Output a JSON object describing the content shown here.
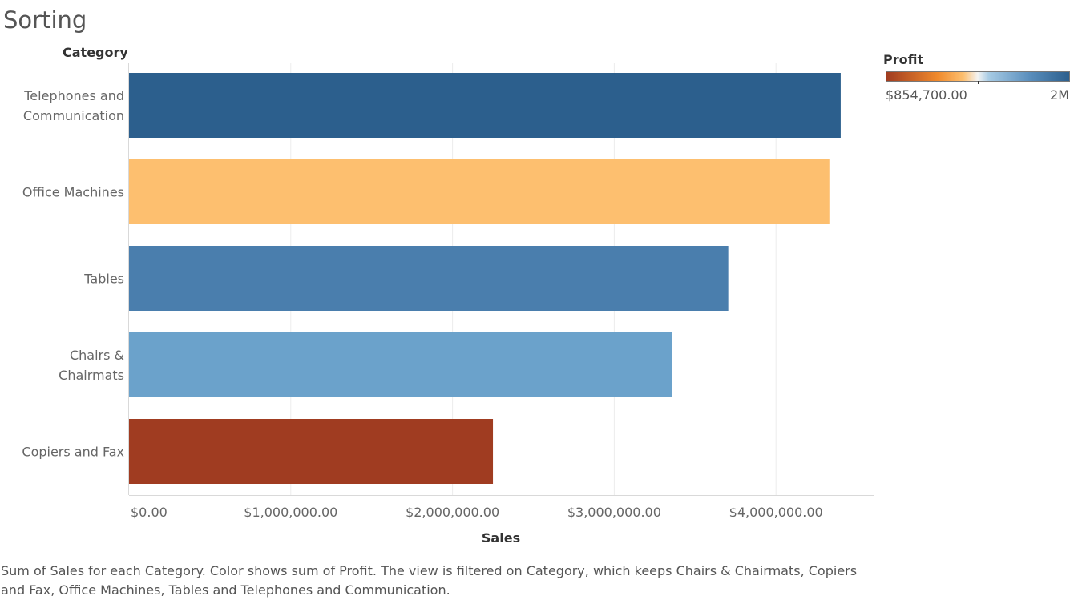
{
  "title": "Sorting",
  "chart_data": {
    "type": "bar",
    "orientation": "horizontal",
    "row_header": "Category",
    "xlabel": "Sales",
    "categories": [
      "Telephones and Communication",
      "Office Machines",
      "Tables",
      "Chairs & Chairmats",
      "Copiers and Fax"
    ],
    "category_label_lines": [
      [
        "Telephones and",
        "Communication"
      ],
      [
        "Office Machines"
      ],
      [
        "Tables"
      ],
      [
        "Chairs &",
        "Chairmats"
      ],
      [
        "Copiers and Fax"
      ]
    ],
    "values": [
      4400000,
      4330000,
      3705000,
      3355000,
      2250000
    ],
    "bar_colors": [
      "#2c5f8d",
      "#fdbf6f",
      "#4a7ead",
      "#6ba2cb",
      "#a03c21"
    ],
    "xlim": [
      0,
      4600000
    ],
    "x_ticks": [
      0,
      1000000,
      2000000,
      3000000,
      4000000
    ],
    "x_tick_labels": [
      "$0.00",
      "$1,000,000.00",
      "$2,000,000.00",
      "$3,000,000.00",
      "$4,000,000.00"
    ],
    "grid": true,
    "legend": {
      "title": "Profit",
      "min_label": "$854,700.00",
      "max_label": "2M",
      "placement": "top-right",
      "gradient_colors": [
        "#a03c21",
        "#f08a2c",
        "#fdbf6f",
        "#f3f3f3",
        "#a7cbe4",
        "#5b8fbd",
        "#2c5f8d"
      ]
    }
  },
  "caption": "Sum of Sales for each Category.  Color shows sum of Profit. The view is filtered on Category, which keeps Chairs & Chairmats, Copiers and Fax, Office Machines, Tables and Telephones and Communication."
}
